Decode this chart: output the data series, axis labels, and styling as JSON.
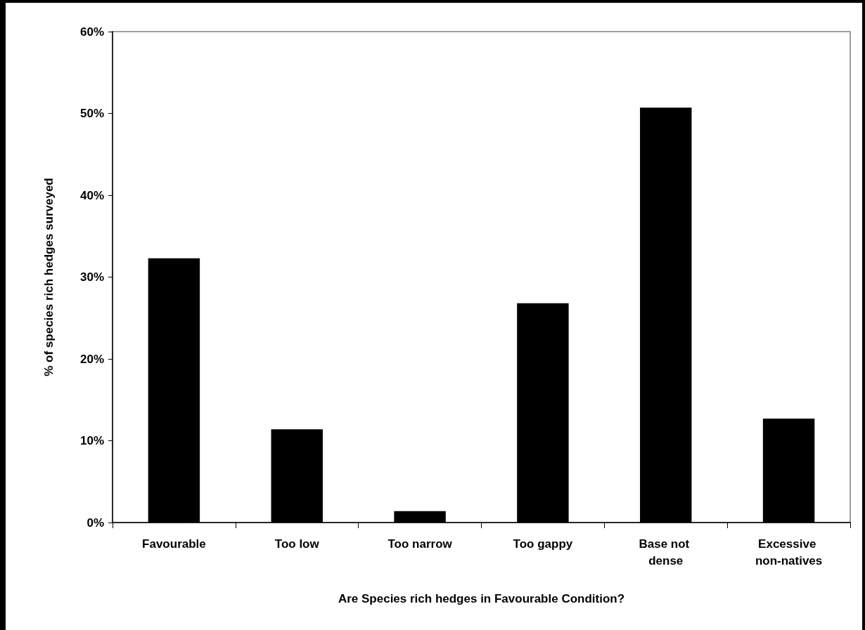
{
  "chart_data": {
    "type": "bar",
    "xlabel": "Are Species rich hedges in Favourable Condition?",
    "ylabel": "% of species rich hedges surveyed",
    "categories": [
      "Favourable",
      "Too low",
      "Too narrow",
      "Too gappy",
      "Base not dense",
      "Excessive non-natives"
    ],
    "values": [
      32.3,
      11.4,
      1.4,
      26.8,
      50.7,
      12.7
    ],
    "color": "#000000",
    "ylim": [
      0,
      60
    ],
    "yticks": [
      {
        "value": 0,
        "label": "0%"
      },
      {
        "value": 10,
        "label": "10%"
      },
      {
        "value": 20,
        "label": "20%"
      },
      {
        "value": 30,
        "label": "30%"
      },
      {
        "value": 40,
        "label": "40%"
      },
      {
        "value": 50,
        "label": "50%"
      },
      {
        "value": 60,
        "label": "60%"
      }
    ],
    "grid": false
  }
}
